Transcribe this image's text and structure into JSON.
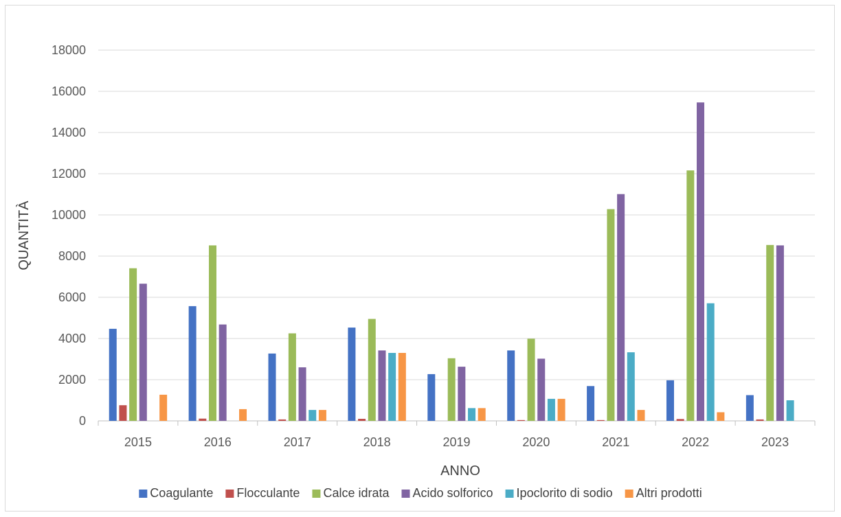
{
  "chart_data": {
    "type": "bar",
    "title": "",
    "xlabel": "ANNO",
    "ylabel": "QUANTITÀ",
    "ylim": [
      0,
      18000
    ],
    "yticks": [
      "0",
      "2000",
      "4000",
      "6000",
      "8000",
      "10000",
      "12000",
      "14000",
      "16000",
      "18000"
    ],
    "grid": true,
    "legend_position": "bottom",
    "categories": [
      "2015",
      "2016",
      "2017",
      "2018",
      "2019",
      "2020",
      "2021",
      "2022",
      "2023"
    ],
    "series": [
      {
        "name": "Coagulante",
        "color": "#4472c4",
        "values": [
          4470,
          5570,
          3270,
          4530,
          2270,
          3420,
          1690,
          1970,
          1250
        ]
      },
      {
        "name": "Flocculante",
        "color": "#c0504d",
        "values": [
          760,
          110,
          70,
          100,
          0,
          40,
          40,
          90,
          70
        ]
      },
      {
        "name": "Calce idrata",
        "color": "#9bbb59",
        "values": [
          7410,
          8520,
          4250,
          4950,
          3040,
          3990,
          10280,
          12160,
          8540
        ]
      },
      {
        "name": "Acido solforico",
        "color": "#8064a2",
        "values": [
          6660,
          4680,
          2600,
          3420,
          2630,
          3020,
          11010,
          15460,
          8520
        ]
      },
      {
        "name": "Ipoclorito di sodio",
        "color": "#4bacc6",
        "values": [
          0,
          0,
          530,
          3300,
          620,
          1070,
          3330,
          5710,
          1000
        ]
      },
      {
        "name": "Altri prodotti",
        "color": "#f79646",
        "values": [
          1270,
          570,
          530,
          3300,
          620,
          1070,
          530,
          420,
          0
        ]
      }
    ]
  }
}
